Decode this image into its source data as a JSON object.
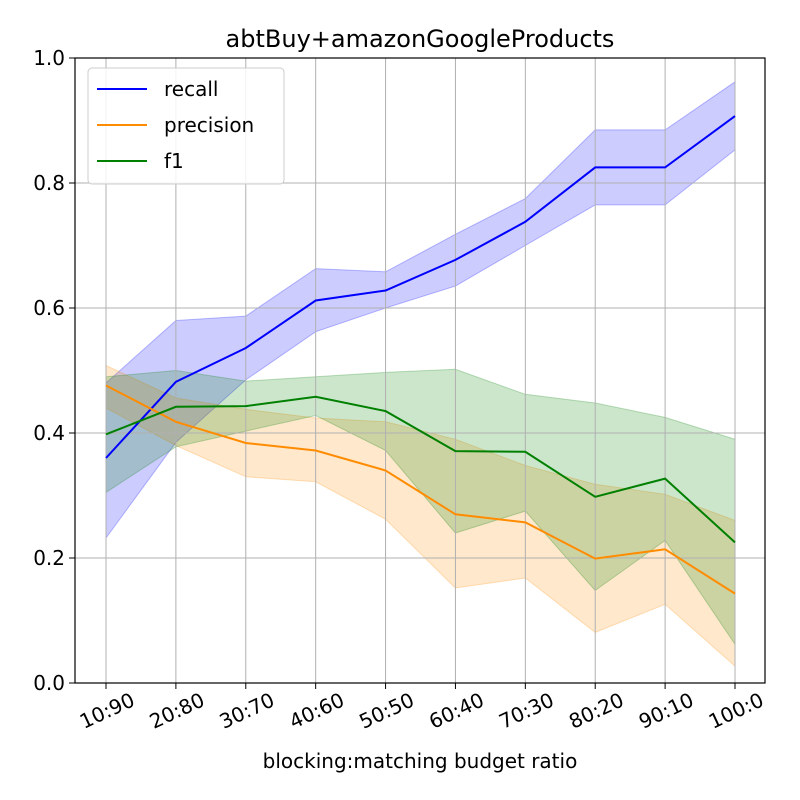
{
  "chart_data": {
    "type": "line",
    "title": "abtBuy+amazonGoogleProducts",
    "xlabel": "blocking:matching  budget ratio",
    "ylabel": "",
    "categories": [
      "10:90",
      "20:80",
      "30:70",
      "40:60",
      "50:50",
      "60:40",
      "70:30",
      "80:20",
      "90:10",
      "100:0"
    ],
    "ylim": [
      0.0,
      1.0
    ],
    "yticks": [
      "0.0",
      "0.2",
      "0.4",
      "0.6",
      "0.8",
      "1.0"
    ],
    "grid": true,
    "legend_position": "top-left",
    "series": [
      {
        "name": "recall",
        "color": "#0000ff",
        "values": [
          0.36,
          0.482,
          0.536,
          0.612,
          0.628,
          0.677,
          0.738,
          0.825,
          0.825,
          0.907
        ],
        "lower": [
          0.232,
          0.385,
          0.485,
          0.562,
          0.6,
          0.635,
          0.7,
          0.765,
          0.765,
          0.853
        ],
        "upper": [
          0.48,
          0.58,
          0.587,
          0.663,
          0.658,
          0.718,
          0.775,
          0.885,
          0.885,
          0.962
        ]
      },
      {
        "name": "precision",
        "color": "#ff8c00",
        "values": [
          0.476,
          0.418,
          0.384,
          0.372,
          0.34,
          0.27,
          0.257,
          0.199,
          0.214,
          0.143
        ],
        "lower": [
          0.44,
          0.38,
          0.33,
          0.322,
          0.262,
          0.152,
          0.168,
          0.081,
          0.126,
          0.027
        ],
        "upper": [
          0.508,
          0.456,
          0.438,
          0.424,
          0.418,
          0.39,
          0.348,
          0.318,
          0.302,
          0.26
        ]
      },
      {
        "name": "f1",
        "color": "#008000",
        "values": [
          0.398,
          0.442,
          0.443,
          0.458,
          0.435,
          0.371,
          0.37,
          0.298,
          0.327,
          0.225
        ],
        "lower": [
          0.305,
          0.378,
          0.403,
          0.428,
          0.372,
          0.24,
          0.275,
          0.148,
          0.228,
          0.062
        ],
        "upper": [
          0.49,
          0.5,
          0.483,
          0.49,
          0.497,
          0.502,
          0.462,
          0.448,
          0.425,
          0.39
        ]
      }
    ]
  }
}
